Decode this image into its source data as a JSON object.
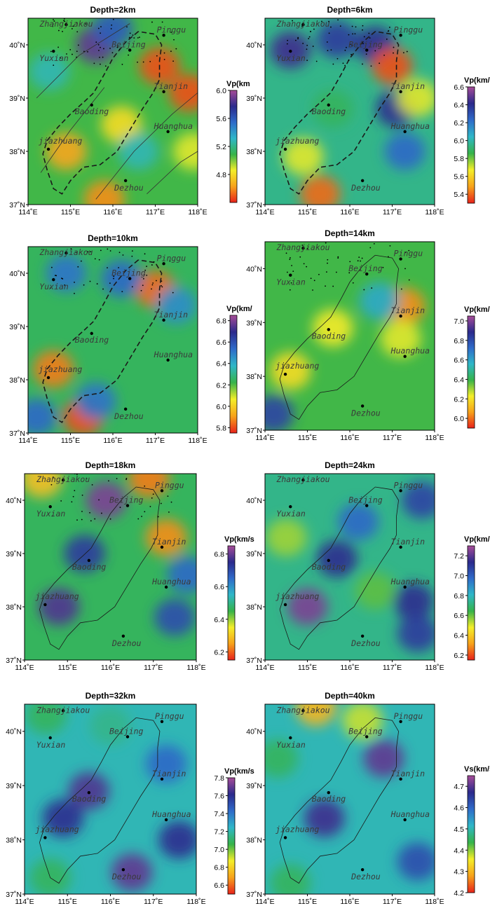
{
  "colors": {
    "scale": [
      "#e8231b",
      "#f7a21b",
      "#f4ee2a",
      "#36b34a",
      "#2fb7c8",
      "#2f6bc9",
      "#2b2a8c",
      "#a64c98"
    ]
  },
  "chart_data": [
    {
      "type": "heatmap",
      "title": "Depth=2km",
      "xticks": [
        "114˚E",
        "115˚E",
        "116˚E",
        "117˚E",
        "118˚E"
      ],
      "yticks": [
        "37˚N",
        "38˚N",
        "39˚N",
        "40˚N"
      ],
      "xlim": [
        114,
        118
      ],
      "ylim": [
        37,
        40.5
      ],
      "colorbar": {
        "label": "Vp(km",
        "ticks": [
          "4.8",
          "5.2",
          "5.6",
          "6.0"
        ],
        "range": [
          4.4,
          6.0
        ]
      },
      "background": 0.42,
      "anomalies": [
        {
          "lon": 114.9,
          "lat": 38.0,
          "value": 0.15
        },
        {
          "lon": 115.8,
          "lat": 37.1,
          "value": 0.12
        },
        {
          "lon": 116.2,
          "lat": 38.5,
          "value": 0.25
        },
        {
          "lon": 117.1,
          "lat": 39.6,
          "value": 0.05
        },
        {
          "lon": 117.8,
          "lat": 39.1,
          "value": 0.05
        },
        {
          "lon": 117.9,
          "lat": 38.0,
          "value": 0.3
        },
        {
          "lon": 115.6,
          "lat": 40.0,
          "value": 0.92
        },
        {
          "lon": 116.0,
          "lat": 40.3,
          "value": 0.75
        },
        {
          "lon": 114.5,
          "lat": 39.5,
          "value": 0.55
        },
        {
          "lon": 116.6,
          "lat": 38.0,
          "value": 0.55
        }
      ],
      "cities": [
        "Zhangjiakou",
        "Yuxian",
        "Pinggu",
        "Beijing",
        "Tianjin",
        "Baoding",
        "Huanghua",
        "jiazhuang",
        "Dezhou"
      ]
    },
    {
      "type": "heatmap",
      "title": "Depth=6km",
      "xticks": [
        "114˚E",
        "115˚E",
        "116˚E",
        "117˚E",
        "118˚E"
      ],
      "yticks": [
        "37˚N",
        "38˚N",
        "39˚N",
        "40˚N"
      ],
      "xlim": [
        114,
        118
      ],
      "ylim": [
        37,
        40.5
      ],
      "colorbar": {
        "label": "Vp(km/s)",
        "ticks": [
          "5.4",
          "5.6",
          "5.8",
          "6.0",
          "6.2",
          "6.4",
          "6.6"
        ],
        "range": [
          5.3,
          6.6
        ]
      },
      "background": 0.5,
      "anomalies": [
        {
          "lon": 114.6,
          "lat": 39.9,
          "value": 0.88
        },
        {
          "lon": 115.7,
          "lat": 40.1,
          "value": 0.82
        },
        {
          "lon": 116.6,
          "lat": 40.0,
          "value": 0.85
        },
        {
          "lon": 117.1,
          "lat": 38.8,
          "value": 0.85
        },
        {
          "lon": 117.3,
          "lat": 38.0,
          "value": 0.72
        },
        {
          "lon": 117.0,
          "lat": 39.6,
          "value": 0.05
        },
        {
          "lon": 115.3,
          "lat": 37.2,
          "value": 0.08
        },
        {
          "lon": 114.9,
          "lat": 37.9,
          "value": 0.3
        },
        {
          "lon": 117.6,
          "lat": 39.0,
          "value": 0.3
        },
        {
          "lon": 115.6,
          "lat": 38.8,
          "value": 0.45
        }
      ],
      "cities": [
        "Zhangjiakou",
        "Yuxian",
        "Pinggu",
        "Beijing",
        "Tianjin",
        "Baoding",
        "Huanghua",
        "jiazhuang",
        "Dezhou"
      ]
    },
    {
      "type": "heatmap",
      "title": "Depth=10km",
      "xticks": [
        "114˚E",
        "115˚E",
        "116˚E",
        "117˚E",
        "118˚E"
      ],
      "yticks": [
        "37˚N",
        "38˚N",
        "39˚N",
        "40˚N"
      ],
      "xlim": [
        114,
        118
      ],
      "ylim": [
        37,
        40.5
      ],
      "colorbar": {
        "label": "Vp(km/",
        "ticks": [
          "5.8",
          "6.0",
          "6.2",
          "6.4",
          "6.6",
          "6.8"
        ],
        "range": [
          5.75,
          6.85
        ]
      },
      "background": 0.45,
      "anomalies": [
        {
          "lon": 114.6,
          "lat": 38.2,
          "value": 0.1
        },
        {
          "lon": 115.3,
          "lat": 37.3,
          "value": 0.05
        },
        {
          "lon": 117.0,
          "lat": 39.7,
          "value": 0.08
        },
        {
          "lon": 114.9,
          "lat": 40.0,
          "value": 0.7
        },
        {
          "lon": 116.2,
          "lat": 39.9,
          "value": 0.72
        },
        {
          "lon": 117.5,
          "lat": 39.4,
          "value": 0.65
        },
        {
          "lon": 114.2,
          "lat": 37.3,
          "value": 0.72
        },
        {
          "lon": 115.6,
          "lat": 37.6,
          "value": 0.7
        }
      ],
      "cities": [
        "Zhangjiakou",
        "Yuxian",
        "Pinggu",
        "Beijing",
        "Tianjin",
        "Baoding",
        "Huanghua",
        "jiazhuang",
        "Dezhou"
      ]
    },
    {
      "type": "heatmap",
      "title": "Depth=14km",
      "xticks": [
        "114˚E",
        "115˚E",
        "116˚E",
        "117˚E",
        "118˚E"
      ],
      "yticks": [
        "37˚N",
        "38˚N",
        "39˚N",
        "40˚N"
      ],
      "xlim": [
        114,
        118
      ],
      "ylim": [
        37,
        40.5
      ],
      "colorbar": {
        "label": "Vp(km/s)",
        "ticks": [
          "6.0",
          "6.2",
          "6.4",
          "6.6",
          "6.8",
          "7.0"
        ],
        "range": [
          5.9,
          7.05
        ]
      },
      "background": 0.42,
      "anomalies": [
        {
          "lon": 117.3,
          "lat": 39.3,
          "value": 0.12
        },
        {
          "lon": 115.6,
          "lat": 38.9,
          "value": 0.28
        },
        {
          "lon": 114.6,
          "lat": 38.1,
          "value": 0.25
        },
        {
          "lon": 117.2,
          "lat": 38.7,
          "value": 0.3
        },
        {
          "lon": 114.2,
          "lat": 37.3,
          "value": 0.8
        },
        {
          "lon": 116.7,
          "lat": 39.4,
          "value": 0.6
        }
      ],
      "cities": [
        "Zhangjiakou",
        "Yuxian",
        "Pinggu",
        "Beijing",
        "Tianjin",
        "Baoding",
        "Huanghua",
        "jiazhuang",
        "Dezhou"
      ]
    },
    {
      "type": "heatmap",
      "title": "Depth=18km",
      "xticks": [
        "114˚E",
        "115˚E",
        "116˚E",
        "117˚E",
        "118˚E"
      ],
      "yticks": [
        "37˚N",
        "38˚N",
        "39˚N",
        "40˚N"
      ],
      "xlim": [
        114,
        118
      ],
      "ylim": [
        37,
        40.5
      ],
      "colorbar": {
        "label": "Vp(km/s",
        "ticks": [
          "6.2",
          "6.4",
          "6.6",
          "6.8"
        ],
        "range": [
          6.15,
          6.85
        ]
      },
      "background": 0.45,
      "anomalies": [
        {
          "lon": 115.9,
          "lat": 40.0,
          "value": 0.95
        },
        {
          "lon": 115.4,
          "lat": 39.0,
          "value": 0.82
        },
        {
          "lon": 114.8,
          "lat": 38.0,
          "value": 0.9
        },
        {
          "lon": 117.5,
          "lat": 37.8,
          "value": 0.78
        },
        {
          "lon": 117.8,
          "lat": 38.6,
          "value": 0.72
        },
        {
          "lon": 117.3,
          "lat": 39.3,
          "value": 0.12
        },
        {
          "lon": 114.4,
          "lat": 40.4,
          "value": 0.2
        },
        {
          "lon": 116.9,
          "lat": 40.4,
          "value": 0.1
        }
      ],
      "cities": [
        "Zhangjiakou",
        "Yuxian",
        "Pinggu",
        "Beijing",
        "Tianjin",
        "Baoding",
        "Huanghua",
        "jiazhuang",
        "Dezhou"
      ]
    },
    {
      "type": "heatmap",
      "title": "Depth=24km",
      "xticks": [
        "114˚E",
        "115˚E",
        "116˚E",
        "117˚E",
        "118˚E"
      ],
      "yticks": [
        "37˚N",
        "38˚N",
        "39˚N",
        "40˚N"
      ],
      "xlim": [
        114,
        118
      ],
      "ylim": [
        37,
        40.5
      ],
      "colorbar": {
        "label": "Vp(km/s)",
        "ticks": [
          "6.2",
          "6.4",
          "6.6",
          "6.8",
          "7.0",
          "7.2"
        ],
        "range": [
          6.15,
          7.3
        ]
      },
      "background": 0.5,
      "anomalies": [
        {
          "lon": 115.0,
          "lat": 38.0,
          "value": 0.95
        },
        {
          "lon": 115.7,
          "lat": 38.9,
          "value": 0.85
        },
        {
          "lon": 117.5,
          "lat": 38.1,
          "value": 0.85
        },
        {
          "lon": 117.6,
          "lat": 37.5,
          "value": 0.82
        },
        {
          "lon": 117.7,
          "lat": 40.0,
          "value": 0.8
        },
        {
          "lon": 116.2,
          "lat": 39.6,
          "value": 0.72
        },
        {
          "lon": 114.5,
          "lat": 39.3,
          "value": 0.35
        },
        {
          "lon": 116.6,
          "lat": 38.3,
          "value": 0.4
        }
      ],
      "cities": [
        "Zhangjiakou",
        "Yuxian",
        "Pinggu",
        "Beijing",
        "Tianjin",
        "Baoding",
        "Huanghua",
        "jiazhuang",
        "Dezhou"
      ]
    },
    {
      "type": "heatmap",
      "title": "Depth=32km",
      "xticks": [
        "114˚E",
        "115˚E",
        "116˚E",
        "117˚E",
        "118˚E"
      ],
      "yticks": [
        "37˚N",
        "38˚N",
        "39˚N",
        "40˚N"
      ],
      "xlim": [
        114,
        118
      ],
      "ylim": [
        37,
        40.5
      ],
      "colorbar": {
        "label": "Vp(km/s",
        "ticks": [
          "6.6",
          "6.8",
          "7.0",
          "7.2",
          "7.4",
          "7.6",
          "7.8"
        ],
        "range": [
          6.5,
          7.8
        ]
      },
      "background": 0.55,
      "anomalies": [
        {
          "lon": 115.5,
          "lat": 38.9,
          "value": 0.9
        },
        {
          "lon": 114.9,
          "lat": 38.4,
          "value": 0.85
        },
        {
          "lon": 116.5,
          "lat": 37.4,
          "value": 0.92
        },
        {
          "lon": 117.6,
          "lat": 38.0,
          "value": 0.85
        },
        {
          "lon": 117.3,
          "lat": 39.4,
          "value": 0.72
        },
        {
          "lon": 114.5,
          "lat": 40.3,
          "value": 0.45
        },
        {
          "lon": 116.0,
          "lat": 40.1,
          "value": 0.5
        },
        {
          "lon": 114.6,
          "lat": 37.3,
          "value": 0.45
        }
      ],
      "cities": [
        "Zhangjiakou",
        "Yuxian",
        "Pinggu",
        "Beijing",
        "Tianjin",
        "Baoding",
        "Huanghua",
        "jiazhuang",
        "Dezhou"
      ]
    },
    {
      "type": "heatmap",
      "title": "Depth=40km",
      "xticks": [
        "114˚E",
        "115˚E",
        "116˚E",
        "117˚E",
        "118˚E"
      ],
      "yticks": [
        "37˚N",
        "38˚N",
        "39˚N",
        "40˚N"
      ],
      "xlim": [
        114,
        118
      ],
      "ylim": [
        37,
        40.5
      ],
      "colorbar": {
        "label": "Vs(km/s)",
        "ticks": [
          "4.2",
          "4.3",
          "4.4",
          "4.5",
          "4.6",
          "4.7"
        ],
        "range": [
          4.2,
          4.75
        ]
      },
      "background": 0.55,
      "anomalies": [
        {
          "lon": 115.2,
          "lat": 40.45,
          "value": 0.18
        },
        {
          "lon": 116.3,
          "lat": 40.2,
          "value": 0.32
        },
        {
          "lon": 116.8,
          "lat": 39.5,
          "value": 0.92
        },
        {
          "lon": 115.4,
          "lat": 38.4,
          "value": 0.88
        },
        {
          "lon": 117.6,
          "lat": 37.6,
          "value": 0.78
        },
        {
          "lon": 114.3,
          "lat": 39.5,
          "value": 0.45
        },
        {
          "lon": 114.6,
          "lat": 37.2,
          "value": 0.45
        }
      ],
      "cities": [
        "Zhangjiakou",
        "Yuxian",
        "Pinggu",
        "Beijing",
        "Tianjin",
        "Baoding",
        "Huanghua",
        "jiazhuang",
        "Dezhou"
      ]
    }
  ]
}
